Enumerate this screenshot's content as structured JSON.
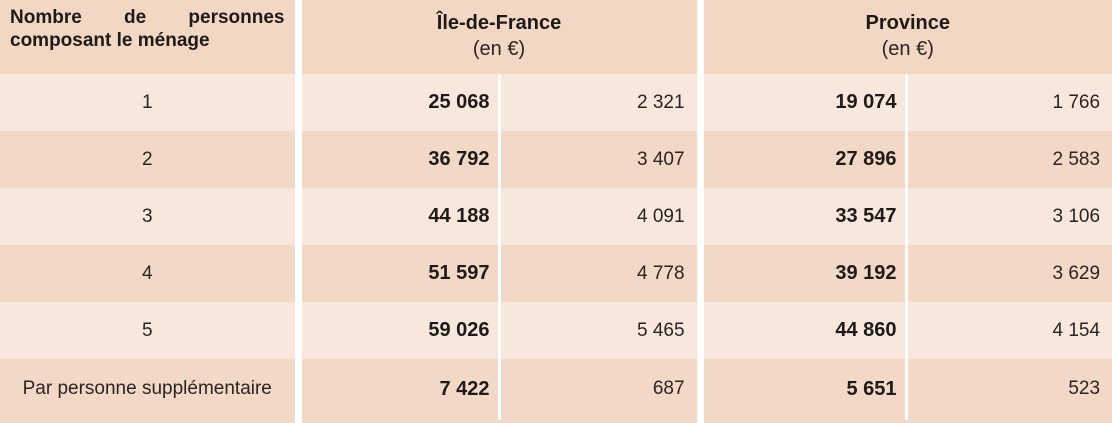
{
  "header": {
    "label": "Nombre de personnes composant le ménage",
    "region1": {
      "name": "Île-de-France",
      "unit": "(en €)"
    },
    "region2": {
      "name": "Province",
      "unit": "(en €)"
    }
  },
  "rows": [
    {
      "label": "1",
      "idf_main": "25 068",
      "idf_sub": "2 321",
      "prov_main": "19 074",
      "prov_sub": "1 766"
    },
    {
      "label": "2",
      "idf_main": "36 792",
      "idf_sub": "3 407",
      "prov_main": "27 896",
      "prov_sub": "2 583"
    },
    {
      "label": "3",
      "idf_main": "44 188",
      "idf_sub": "4 091",
      "prov_main": "33 547",
      "prov_sub": "3 106"
    },
    {
      "label": "4",
      "idf_main": "51 597",
      "idf_sub": "4 778",
      "prov_main": "39 192",
      "prov_sub": "3 629"
    },
    {
      "label": "5",
      "idf_main": "59 026",
      "idf_sub": "5 465",
      "prov_main": "44 860",
      "prov_sub": "4 154"
    },
    {
      "label": "Par personne supplémentaire",
      "idf_main": "7 422",
      "idf_sub": "687",
      "prov_main": "5 651",
      "prov_sub": "523"
    }
  ]
}
